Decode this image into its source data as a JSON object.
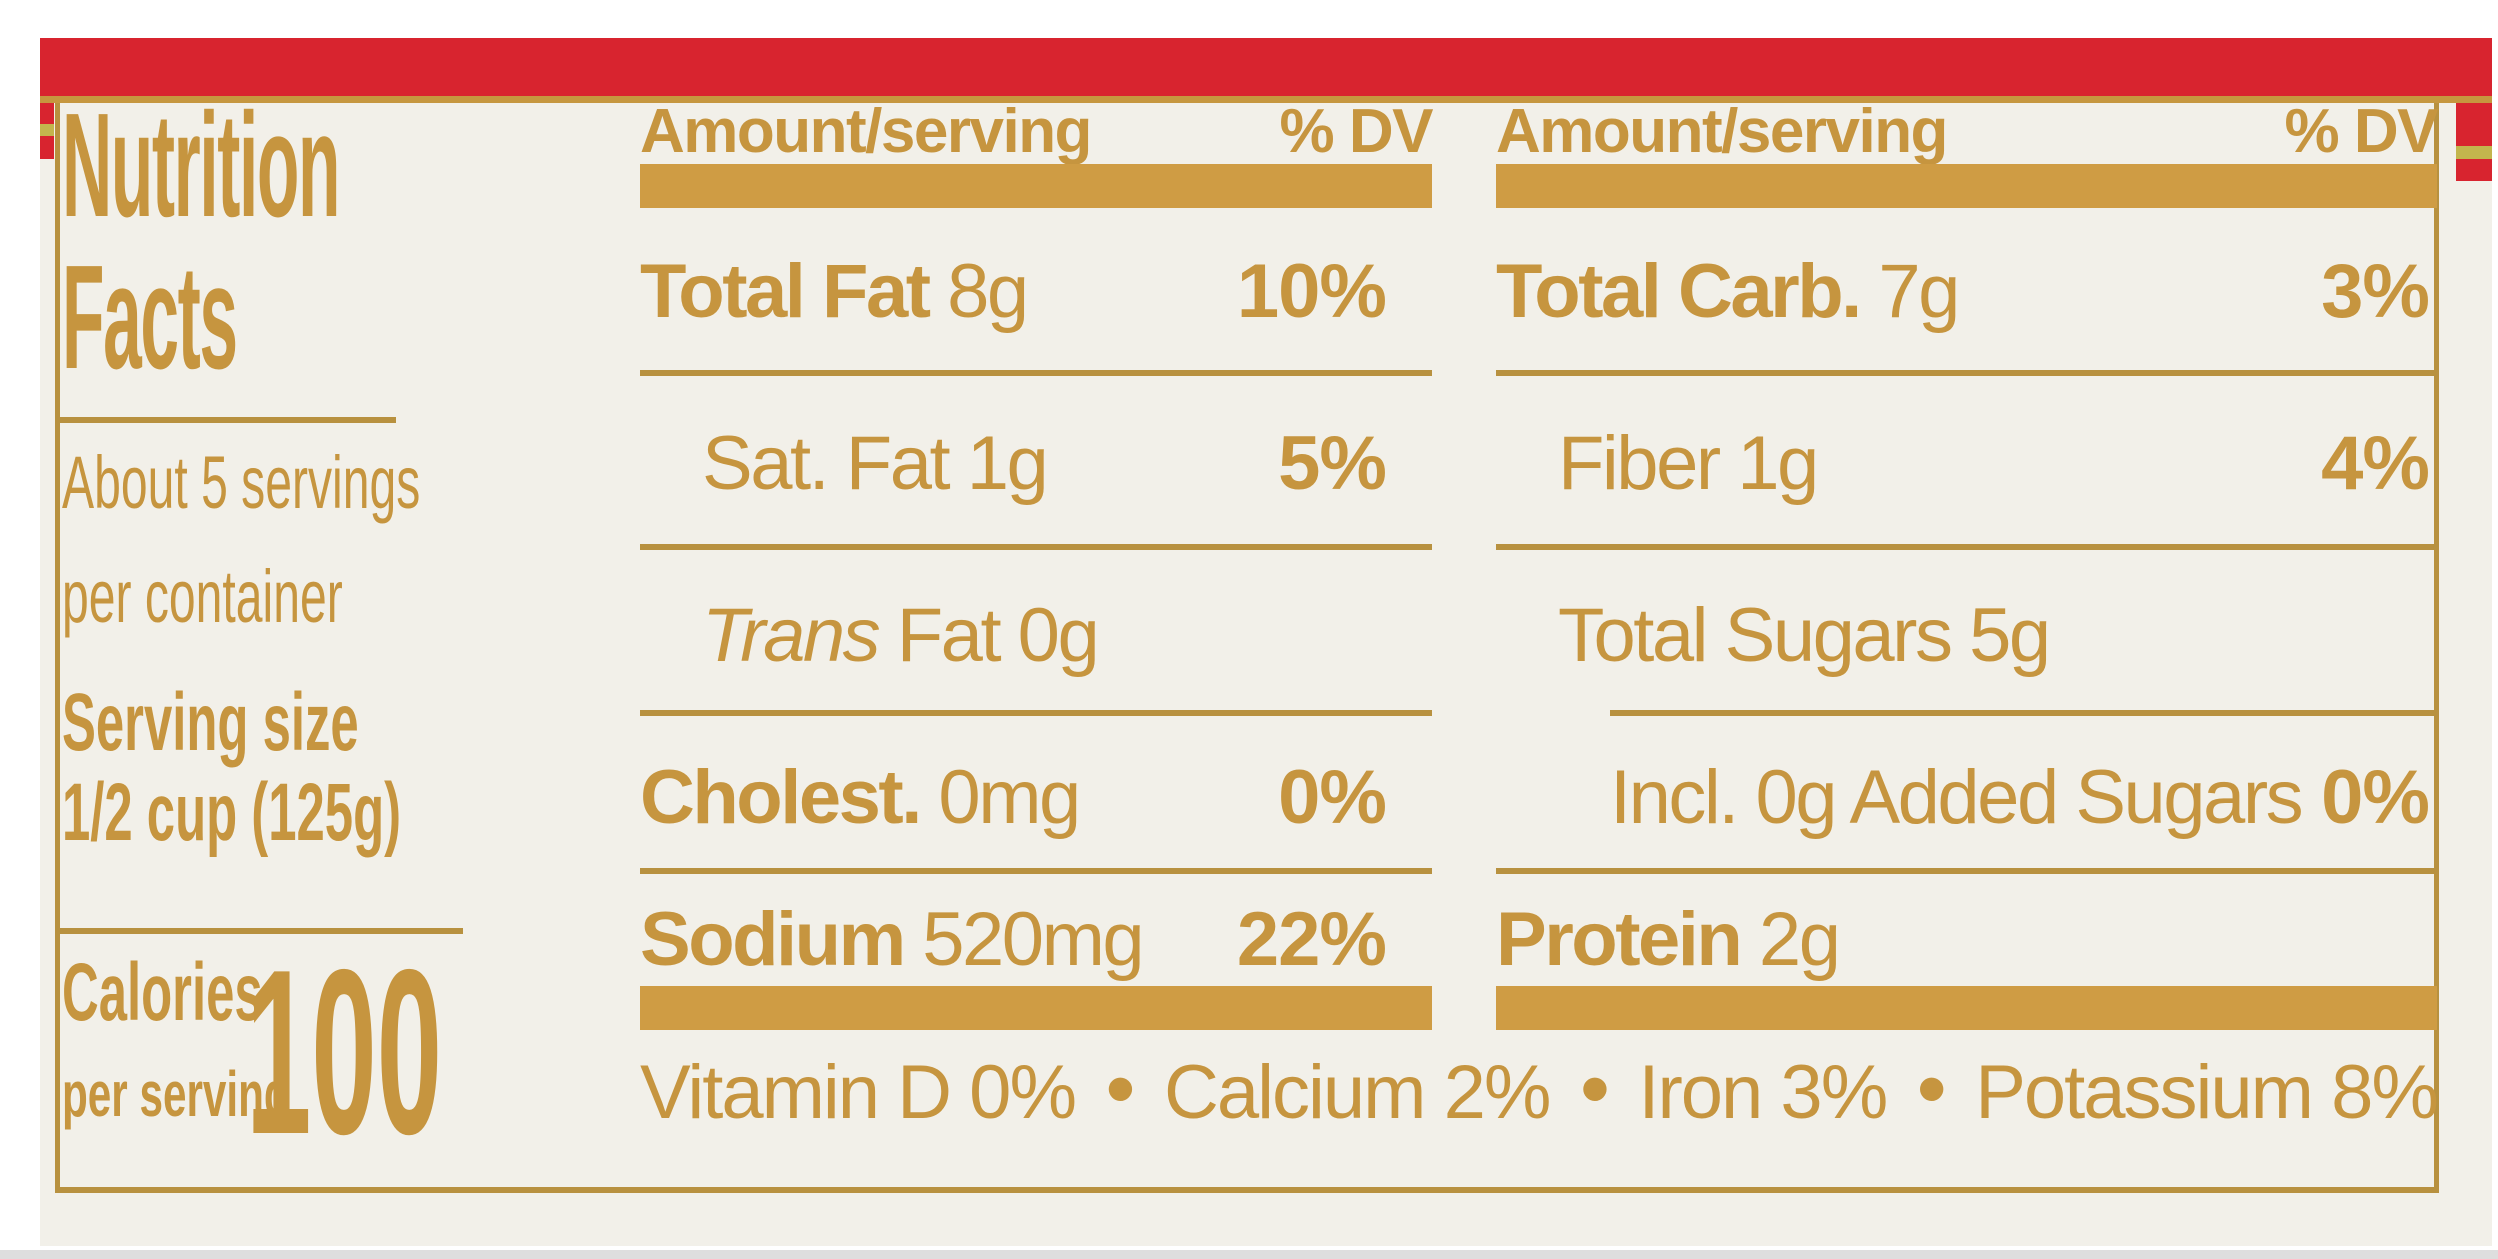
{
  "label": {
    "title_line1": "Nutrition",
    "title_line2": "Facts",
    "servings_line1": "About 5 servings",
    "servings_line2": "per container",
    "serving_size_label": "Serving size",
    "serving_size_value": "1/2 cup (125g)",
    "calories_label": "Calories",
    "calories_sub": "per serving",
    "calories_value": "100"
  },
  "mid": {
    "header_amount": "Amount/serving",
    "header_dv": "% DV",
    "rows": [
      {
        "name": "Total Fat",
        "rest": " 8g",
        "dv": "10%"
      },
      {
        "name": "",
        "rest": "Sat. Fat 1g",
        "dv": "5%"
      },
      {
        "name": "",
        "italic": "Trans",
        "rest": " Fat 0g",
        "dv": ""
      },
      {
        "name": "Cholest.",
        "rest": " 0mg",
        "dv": "0%"
      },
      {
        "name": "Sodium",
        "rest": " 520mg",
        "dv": "22%"
      }
    ]
  },
  "right": {
    "header_amount": "Amount/serving",
    "header_dv": "% DV",
    "rows": [
      {
        "name": "Total Carb.",
        "rest": " 7g",
        "dv": "3%"
      },
      {
        "name": "",
        "rest": "Fiber 1g",
        "dv": "4%"
      },
      {
        "name": "",
        "rest": "Total Sugars 5g",
        "dv": ""
      },
      {
        "name": "",
        "rest": "Incl. 0g Added Sugars",
        "dv": "0%"
      },
      {
        "name": "Protein",
        "rest": " 2g",
        "dv": ""
      }
    ]
  },
  "micronutrients": [
    {
      "name": "Vitamin D",
      "value": "0%"
    },
    {
      "name": "Calcium",
      "value": "2%"
    },
    {
      "name": "Iron",
      "value": "3%"
    },
    {
      "name": "Potassium",
      "value": "8%"
    }
  ],
  "icons": {
    "bullet_dot": "•"
  },
  "colors": {
    "gold_text": "#c6953f",
    "gold_bar": "#cf9c44",
    "gold_rule": "#b8913f",
    "red_band": "#d8242f",
    "olive_dash": "#c3b54d",
    "label_background": "#f2f0e9"
  }
}
